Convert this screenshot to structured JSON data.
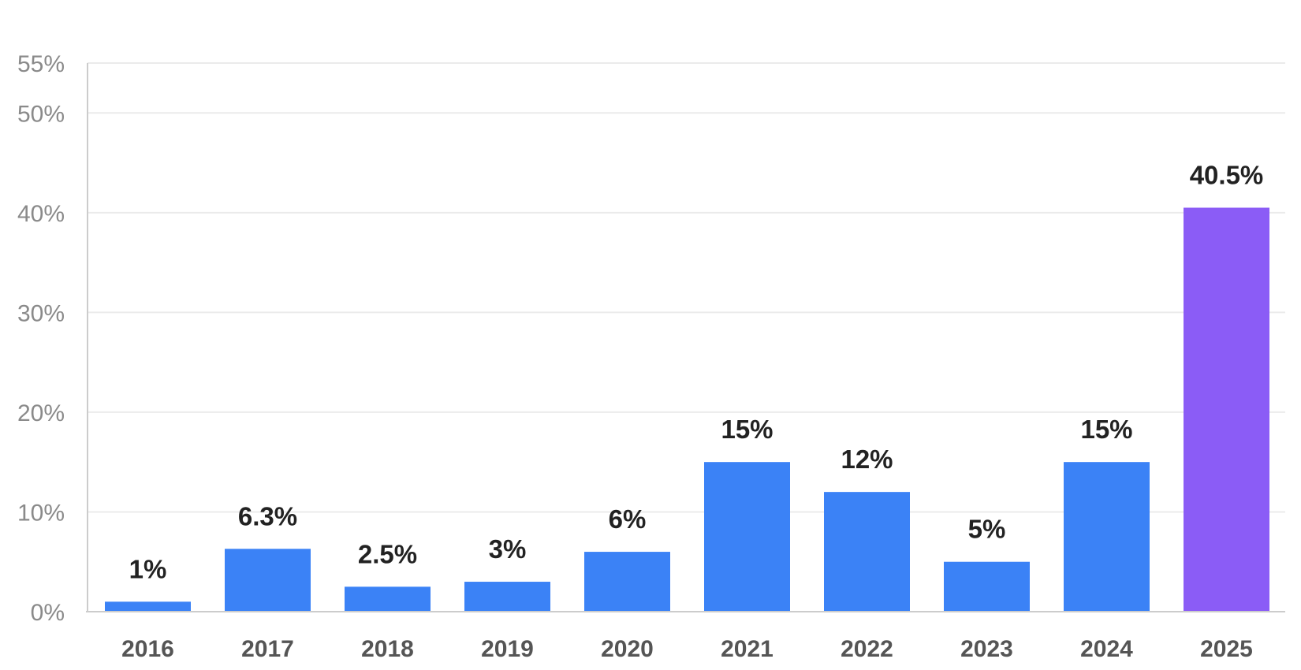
{
  "chart_data": {
    "type": "bar",
    "title": "",
    "xlabel": "",
    "ylabel": "",
    "categories": [
      "2016",
      "2017",
      "2018",
      "2019",
      "2020",
      "2021",
      "2022",
      "2023",
      "2024",
      "2025"
    ],
    "values": [
      1,
      6.3,
      2.5,
      3,
      6,
      15,
      12,
      5,
      15,
      40.5
    ],
    "data_labels": [
      "1%",
      "6.3%",
      "2.5%",
      "3%",
      "6%",
      "15%",
      "12%",
      "5%",
      "15%",
      "40.5%"
    ],
    "ylim": [
      0,
      55
    ],
    "y_ticks": [
      0,
      10,
      20,
      30,
      40,
      50,
      55
    ],
    "y_tick_labels": [
      "0%",
      "10%",
      "20%",
      "30%",
      "40%",
      "50%",
      "55%"
    ],
    "grid": true,
    "legend": "none",
    "colors": {
      "default_bar": "#3b82f6",
      "highlight_bar": "#8b5cf6"
    },
    "highlight_category": "2025"
  }
}
